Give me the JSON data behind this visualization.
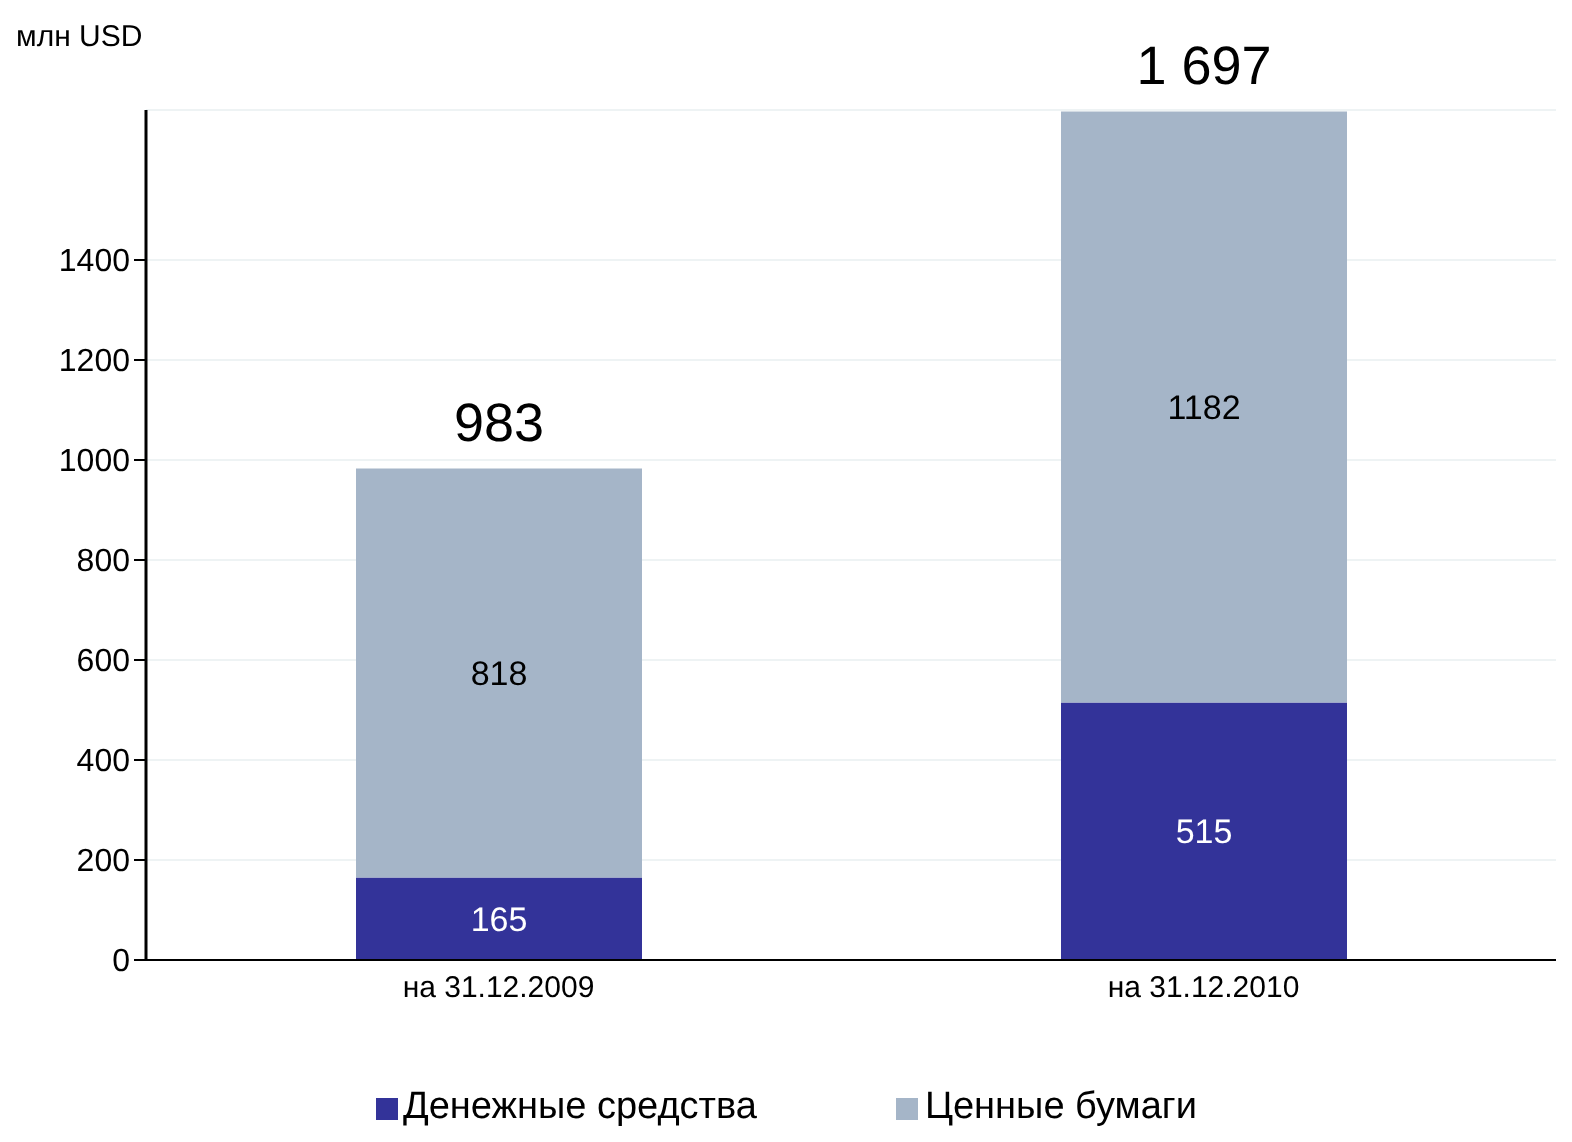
{
  "chart_data": {
    "type": "bar",
    "ylabel": "млн USD",
    "categories": [
      "на 31.12.2009",
      "на 31.12.2010"
    ],
    "stacked": true,
    "series": [
      {
        "name": "Денежные средства",
        "color": "#333399",
        "values": [
          165,
          515
        ]
      },
      {
        "name": "Ценные бумаги",
        "color": "#a5b5c8",
        "values": [
          818,
          1182
        ]
      }
    ],
    "ylim": [
      0,
      1700
    ],
    "yticks": [
      0,
      200,
      400,
      600,
      800,
      1000,
      1200,
      1400
    ],
    "grid": "y",
    "legend": "bottom",
    "data_labels": true,
    "totals": [
      "983",
      "1 697"
    ]
  }
}
